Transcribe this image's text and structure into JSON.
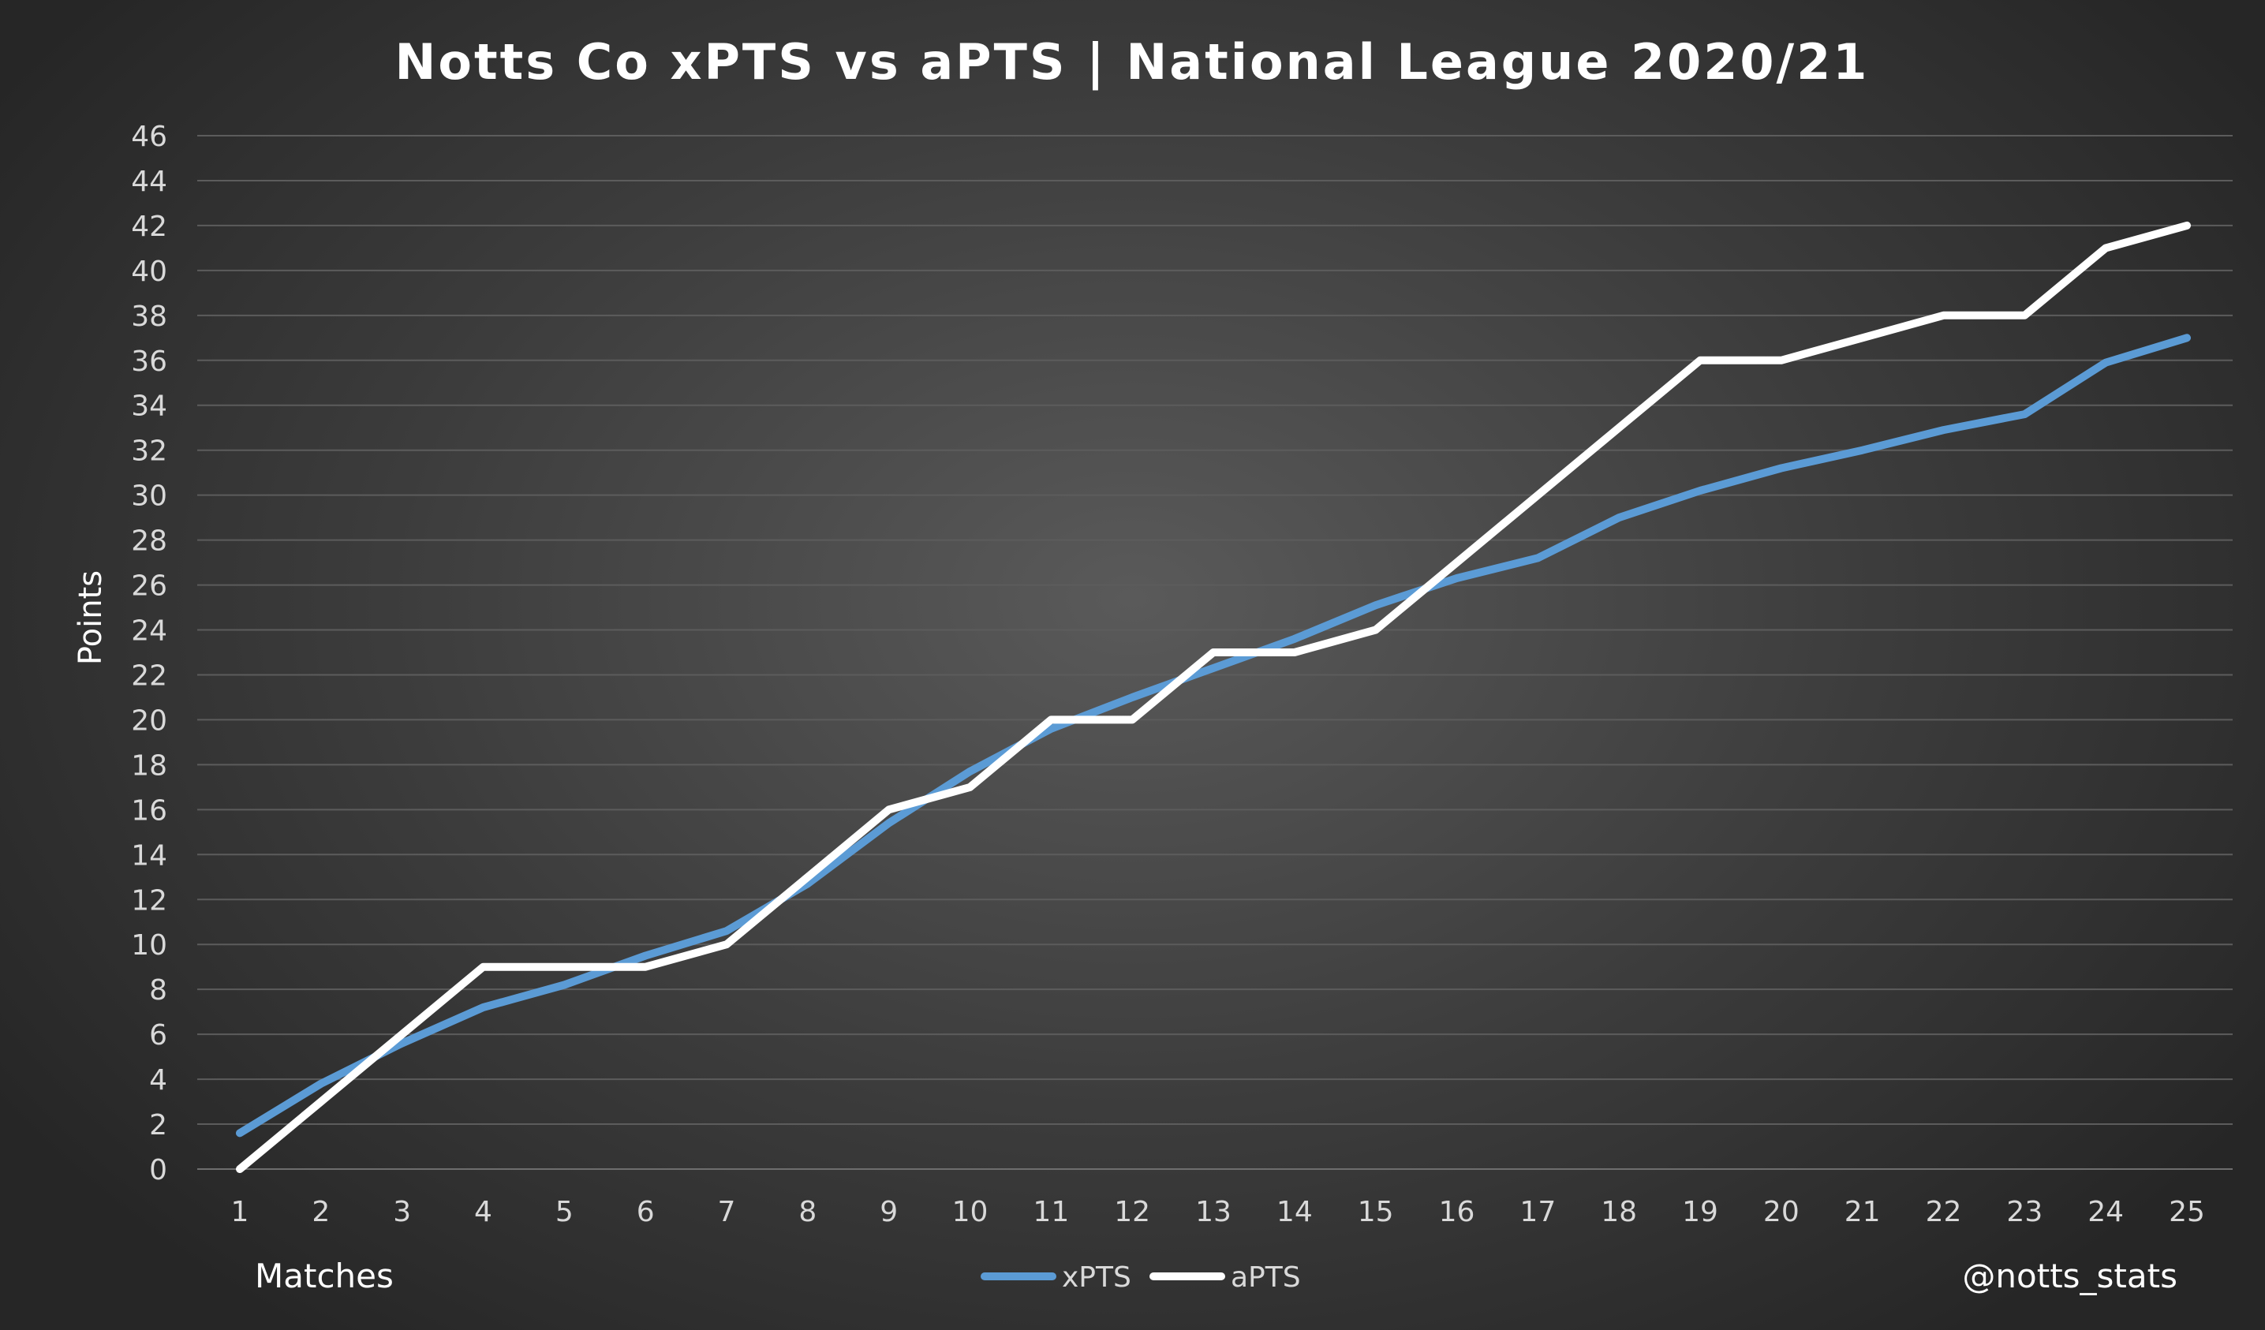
{
  "chart_data": {
    "type": "line",
    "title": "Notts Co xPTS vs aPTS | National League 2020/21",
    "xlabel": "Matches",
    "ylabel": "Points",
    "watermark": "@notts_stats",
    "x": [
      1,
      2,
      3,
      4,
      5,
      6,
      7,
      8,
      9,
      10,
      11,
      12,
      13,
      14,
      15,
      16,
      17,
      18,
      19,
      20,
      21,
      22,
      23,
      24,
      25
    ],
    "ylim": [
      0,
      46
    ],
    "yticks": [
      0,
      2,
      4,
      6,
      8,
      10,
      12,
      14,
      16,
      18,
      20,
      22,
      24,
      26,
      28,
      30,
      32,
      34,
      36,
      38,
      40,
      42,
      44,
      46
    ],
    "grid": true,
    "legend_position": "bottom",
    "series": [
      {
        "name": "xPTS",
        "color": "#5b9bd5",
        "values": [
          1.6,
          3.8,
          5.6,
          7.2,
          8.2,
          9.5,
          10.6,
          12.7,
          15.4,
          17.7,
          19.6,
          21.0,
          22.3,
          23.6,
          25.1,
          26.3,
          27.2,
          29.0,
          30.2,
          31.2,
          32.0,
          32.9,
          33.6,
          35.9,
          37.0
        ]
      },
      {
        "name": "aPTS",
        "color": "#ffffff",
        "values": [
          0,
          3,
          6,
          9,
          9,
          9,
          10,
          13,
          16,
          17,
          20,
          20,
          23,
          23,
          24,
          27,
          30,
          33,
          36,
          36,
          37,
          38,
          38,
          41,
          42
        ]
      }
    ]
  }
}
